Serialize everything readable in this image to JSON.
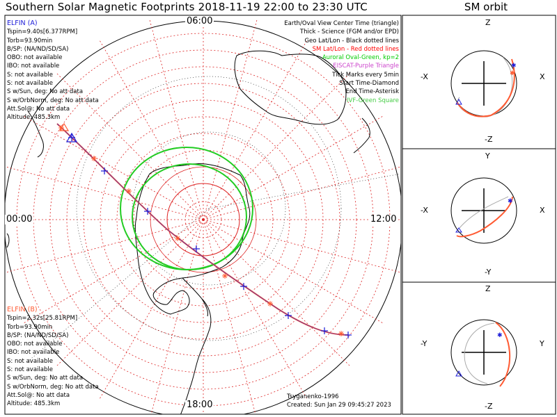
{
  "header": {
    "title": "Southern Solar Magnetic Footprints 2018-11-19 22:00 to 23:30 UTC",
    "sm_title": "SM orbit"
  },
  "time_labels": {
    "top": "06:00",
    "left": "00:00",
    "right": "12:00",
    "bottom": "18:00"
  },
  "elfin_a": {
    "name": "ELFIN (A)",
    "color": "#1c1cd8",
    "lines": [
      "Tspin=9.40s[6.377RPM]",
      "Torb=93.90min",
      "B/SP: (NA/ND/SD/SA)",
      "OBO: not available",
      "IBO: not available",
      "S: not available",
      "S: not available",
      "S w/Sun, deg: No att data",
      "S w/OrbNorm, deg: No att data",
      "Att.Sol@: No att data",
      "Altitude: 485.3km"
    ]
  },
  "elfin_b": {
    "name": "ELFIN (B)",
    "color": "#ff5a32",
    "lines": [
      "Tspin=2.32s[25.81RPM]",
      "Torb=93.90min",
      "B/SP: (NA/ND/SD/SA)",
      "OBO: not available",
      "IBO: not available",
      "S: not available",
      "S: not available",
      "S w/Sun, deg: No att data",
      "S w/OrbNorm, deg: No att data",
      "Att.Sol@: No att data",
      "Altitude: 485.3km"
    ]
  },
  "legend": [
    {
      "text": "Earth/Oval View Center Time (triangle)",
      "color": "#000000"
    },
    {
      "text": "Thick - Science (FGM and/or EPD)",
      "color": "#000000"
    },
    {
      "text": "Geo Lat/Lon - Black dotted lines",
      "color": "#000000"
    },
    {
      "text": "SM Lat/Lon - Red dotted lines",
      "color": "#ff0000"
    },
    {
      "text": "Auroral Oval-Green, kp=2",
      "color": "#00cc00"
    },
    {
      "text": "EISCAT-Purple Triangle",
      "color": "#cc44cc"
    },
    {
      "text": "Tick Marks every 5min",
      "color": "#000000"
    },
    {
      "text": "Start Time-Diamond",
      "color": "#000000"
    },
    {
      "text": "End Time-Asterisk",
      "color": "#000000"
    },
    {
      "text": "IVF-Green Square",
      "color": "#44cc44"
    }
  ],
  "footer": {
    "credit": "Tsyganenko-1996",
    "created": "Created: Sun Jan 29 09:45:27 2023"
  },
  "sm_panels": [
    {
      "top_label": "Z",
      "bottom_label": "-Z",
      "left_label": "-X",
      "right_label": "X"
    },
    {
      "top_label": "Y",
      "bottom_label": "-Y",
      "left_label": "-X",
      "right_label": "X"
    },
    {
      "top_label": "Z",
      "bottom_label": "-Z",
      "left_label": "-Y",
      "right_label": "Y"
    }
  ],
  "colors": {
    "grid_red": "#dd2222",
    "oval_green": "#22cc22",
    "orbit_a": "#1c1cd8",
    "orbit_b": "#ff5a32",
    "earth_gray": "#aaaaaa"
  }
}
